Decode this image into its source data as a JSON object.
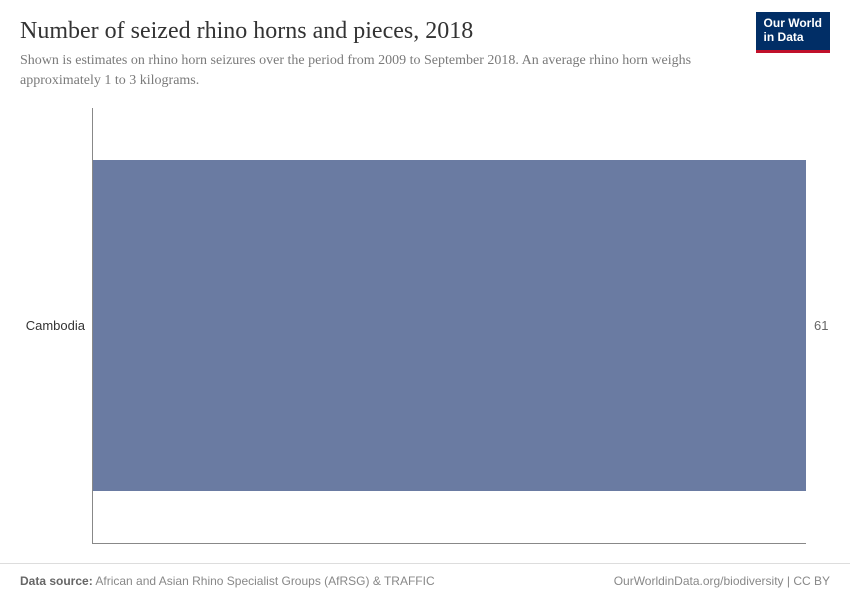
{
  "header": {
    "title": "Number of seized rhino horns and pieces, 2018",
    "subtitle": "Shown is estimates on rhino horn seizures over the period from 2009 to September 2018. An average rhino horn weighs approximately 1 to 3 kilograms.",
    "logo_line1": "Our World",
    "logo_line2": "in Data"
  },
  "chart": {
    "type": "bar-horizontal",
    "categories": [
      "Cambodia"
    ],
    "values": [
      61
    ],
    "xmax": 61,
    "bar_color": "#6a7ba2",
    "axis_color": "#888888",
    "label_color": "#333333",
    "value_color": "#666666",
    "background_color": "#ffffff",
    "category_fontsize": 13,
    "value_fontsize": 13,
    "bar_height_pct": 76,
    "bar_top_pct": 12
  },
  "footer": {
    "source_label": "Data source:",
    "source_text": "African and Asian Rhino Specialist Groups (AfRSG) & TRAFFIC",
    "attribution": "OurWorldinData.org/biodiversity | CC BY"
  }
}
